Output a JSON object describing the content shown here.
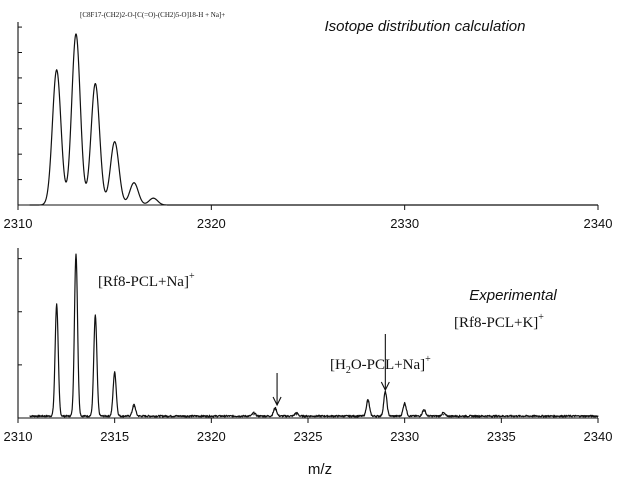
{
  "chart_data": [
    {
      "type": "line",
      "panel": "top",
      "title": "Isotope distribution calculation",
      "structure_label": "[C8F17-(CH2)2-O-[C(=O)-(CH2)5-O]18-H + Na]+",
      "xlim": [
        2310,
        2340
      ],
      "ylim": [
        0,
        1.0
      ],
      "x_ticks": [
        "2310",
        "2320",
        "2330",
        "2340"
      ],
      "y_tick_count": 7,
      "grid": false,
      "peaks": [
        {
          "x": 2312,
          "y": 0.79
        },
        {
          "x": 2313,
          "y": 1.0
        },
        {
          "x": 2314,
          "y": 0.71
        },
        {
          "x": 2315,
          "y": 0.37
        },
        {
          "x": 2316,
          "y": 0.13
        },
        {
          "x": 2317,
          "y": 0.04
        }
      ]
    },
    {
      "type": "line",
      "panel": "bottom",
      "title": "Experimental",
      "xlabel": "m/z",
      "xlim": [
        2310,
        2340
      ],
      "ylim": [
        0,
        1.0
      ],
      "x_ticks": [
        "2310",
        "2315",
        "2320",
        "2325",
        "2330",
        "2335",
        "2340"
      ],
      "y_tick_count": 3,
      "grid": false,
      "annotations": [
        {
          "label_main": "[Rf8-PCL+Na]",
          "label_sup": "+",
          "x": 2313,
          "arrow": false
        },
        {
          "label_main": "[H",
          "label_sub": "2",
          "label_tail": "O-PCL+Na]",
          "label_sup": "+",
          "x": 2323.4,
          "arrow": true
        },
        {
          "label_main": "[Rf8-PCL+K]",
          "label_sup": "+",
          "x": 2329,
          "arrow": true
        }
      ],
      "peaks": [
        {
          "x": 2312,
          "y": 0.69
        },
        {
          "x": 2313,
          "y": 1.0
        },
        {
          "x": 2314,
          "y": 0.62
        },
        {
          "x": 2315,
          "y": 0.27
        },
        {
          "x": 2316,
          "y": 0.07
        },
        {
          "x": 2322.2,
          "y": 0.02
        },
        {
          "x": 2323.3,
          "y": 0.05
        },
        {
          "x": 2324.4,
          "y": 0.02
        },
        {
          "x": 2328.1,
          "y": 0.1
        },
        {
          "x": 2329,
          "y": 0.15
        },
        {
          "x": 2330,
          "y": 0.08
        },
        {
          "x": 2331,
          "y": 0.04
        },
        {
          "x": 2332,
          "y": 0.02
        }
      ]
    }
  ]
}
